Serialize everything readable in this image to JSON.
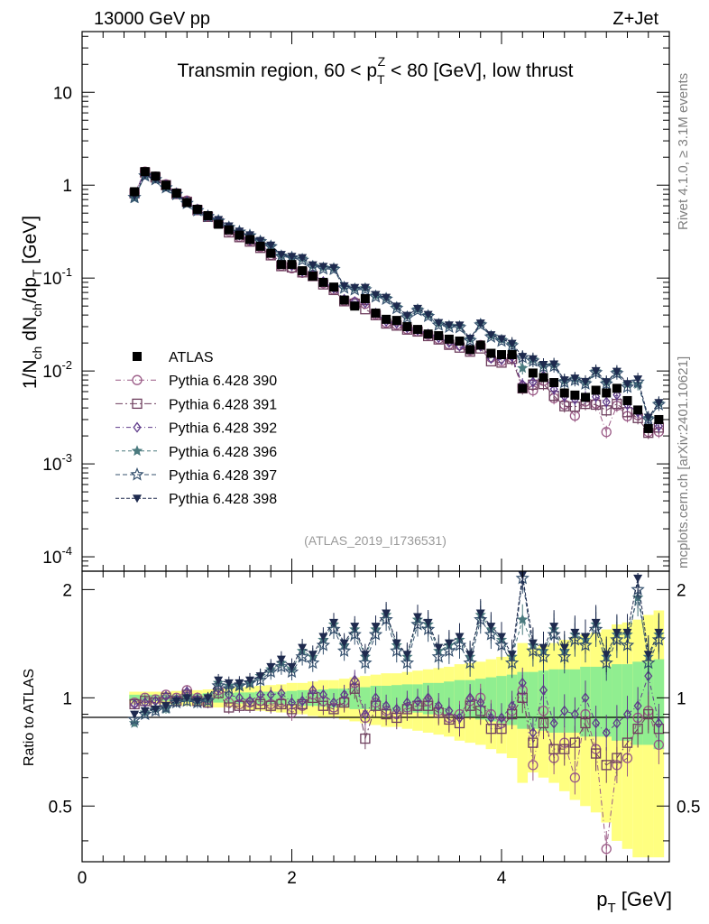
{
  "header": {
    "left": "13000 GeV pp",
    "right": "Z+Jet"
  },
  "side_text": {
    "top": "Rivet 4.1.0, ≥ 3.1M events",
    "bottom": "mcplots.cern.ch [arXiv:2401.10621]"
  },
  "colors": {
    "data": "#000000",
    "band_inner": "#90ee90",
    "band_outer": "#ffff80",
    "series": [
      "#9a5a86",
      "#6e3f5e",
      "#5e3a8a",
      "#4a7a7e",
      "#34506e",
      "#1e2a4e"
    ]
  },
  "chart_data": [
    {
      "type": "scatter",
      "panel": "main",
      "title": "Transmin region, 60 < p_T^Z < 80 [GeV], low thrust",
      "title_parts": {
        "pre": "Transmin region, 60 < p",
        "sub": "T",
        "sup": "Z",
        "post": " < 80 [GeV], low thrust"
      },
      "ylabel": "1/N_ch dN_ch/dp_T [GeV]",
      "ylabel_parts": {
        "a": "1/N",
        "a_sub": "ch",
        "b": " dN",
        "b_sub": "ch",
        "c": "/dp",
        "c_sub": "T",
        "d": " [GeV]"
      },
      "xlabel": "p_T [GeV]",
      "xlabel_parts": {
        "a": "p",
        "a_sub": "T",
        "b": " [GeV]"
      },
      "yscale": "log",
      "ylim": [
        7e-05,
        45
      ],
      "xlim": [
        0,
        5.6
      ],
      "yticks": [
        {
          "label": "10",
          "sup": "-4",
          "value": 0.0001
        },
        {
          "label": "10",
          "sup": "-3",
          "value": 0.001
        },
        {
          "label": "10",
          "sup": "-2",
          "value": 0.01
        },
        {
          "label": "10",
          "sup": "-1",
          "value": 0.1
        },
        {
          "label": "1",
          "sup": "",
          "value": 1
        },
        {
          "label": "10",
          "sup": "",
          "value": 10
        }
      ],
      "xticks": [
        {
          "label": "0",
          "value": 0
        },
        {
          "label": "2",
          "value": 2
        },
        {
          "label": "4",
          "value": 4
        }
      ],
      "watermark": "(ATLAS_2019_I1736531)",
      "legend_position": "middle-left",
      "legend": [
        {
          "label": "ATLAS",
          "marker": "square-filled"
        },
        {
          "label": "Pythia 6.428 390",
          "marker": "circle-open"
        },
        {
          "label": "Pythia 6.428 391",
          "marker": "square-open"
        },
        {
          "label": "Pythia 6.428 392",
          "marker": "diamond-open"
        },
        {
          "label": "Pythia 6.428 396",
          "marker": "star-filled"
        },
        {
          "label": "Pythia 6.428 397",
          "marker": "star-open"
        },
        {
          "label": "Pythia 6.428 398",
          "marker": "triangle-down-filled"
        }
      ],
      "x": [
        0.5,
        0.6,
        0.7,
        0.8,
        0.9,
        1.0,
        1.1,
        1.2,
        1.3,
        1.4,
        1.5,
        1.6,
        1.7,
        1.8,
        1.9,
        2.0,
        2.1,
        2.2,
        2.3,
        2.4,
        2.5,
        2.6,
        2.7,
        2.8,
        2.9,
        3.0,
        3.1,
        3.2,
        3.3,
        3.4,
        3.5,
        3.6,
        3.7,
        3.8,
        3.9,
        4.0,
        4.1,
        4.2,
        4.3,
        4.4,
        4.5,
        4.6,
        4.7,
        4.8,
        4.9,
        5.0,
        5.1,
        5.2,
        5.3,
        5.4,
        5.5
      ],
      "data_values": [
        0.85,
        1.4,
        1.25,
        1.0,
        0.82,
        0.65,
        0.55,
        0.47,
        0.38,
        0.33,
        0.29,
        0.26,
        0.22,
        0.185,
        0.14,
        0.14,
        0.12,
        0.105,
        0.09,
        0.08,
        0.058,
        0.05,
        0.06,
        0.042,
        0.036,
        0.035,
        0.03,
        0.028,
        0.025,
        0.024,
        0.022,
        0.021,
        0.017,
        0.019,
        0.0155,
        0.015,
        0.015,
        0.0065,
        0.0095,
        0.0085,
        0.0075,
        0.0058,
        0.0055,
        0.0052,
        0.0062,
        0.0058,
        0.0065,
        0.0048,
        0.0038,
        0.0024,
        0.003
      ],
      "series": [
        {
          "name": "Pythia 6.428 390",
          "marker": "circle-open"
        },
        {
          "name": "Pythia 6.428 391",
          "marker": "square-open"
        },
        {
          "name": "Pythia 6.428 392",
          "marker": "diamond-open"
        },
        {
          "name": "Pythia 6.428 396",
          "marker": "star-filled"
        },
        {
          "name": "Pythia 6.428 397",
          "marker": "star-open"
        },
        {
          "name": "Pythia 6.428 398",
          "marker": "triangle-down-filled"
        }
      ]
    },
    {
      "type": "scatter",
      "panel": "ratio",
      "ylabel": "Ratio to ATLAS",
      "ylim": [
        0.35,
        2.25
      ],
      "xlim": [
        0,
        5.6
      ],
      "yticks": [
        {
          "label": "0.5",
          "value": 0.5
        },
        {
          "label": "1",
          "value": 1
        },
        {
          "label": "2",
          "value": 2
        }
      ],
      "x": [
        0.5,
        0.6,
        0.7,
        0.8,
        0.9,
        1.0,
        1.1,
        1.2,
        1.3,
        1.4,
        1.5,
        1.6,
        1.7,
        1.8,
        1.9,
        2.0,
        2.1,
        2.2,
        2.3,
        2.4,
        2.5,
        2.6,
        2.7,
        2.8,
        2.9,
        3.0,
        3.1,
        3.2,
        3.3,
        3.4,
        3.5,
        3.6,
        3.7,
        3.8,
        3.9,
        4.0,
        4.1,
        4.2,
        4.3,
        4.4,
        4.5,
        4.6,
        4.7,
        4.8,
        4.9,
        5.0,
        5.1,
        5.2,
        5.3,
        5.4,
        5.5
      ],
      "band_inner": [
        0.02,
        0.02,
        0.02,
        0.02,
        0.02,
        0.025,
        0.025,
        0.03,
        0.03,
        0.03,
        0.035,
        0.035,
        0.04,
        0.04,
        0.04,
        0.045,
        0.05,
        0.05,
        0.055,
        0.06,
        0.06,
        0.07,
        0.07,
        0.08,
        0.08,
        0.085,
        0.09,
        0.09,
        0.1,
        0.1,
        0.11,
        0.12,
        0.12,
        0.13,
        0.14,
        0.15,
        0.16,
        0.18,
        0.18,
        0.19,
        0.2,
        0.2,
        0.2,
        0.22,
        0.22,
        0.22,
        0.24,
        0.24,
        0.26,
        0.26,
        0.28
      ],
      "band_outer": [
        0.04,
        0.04,
        0.04,
        0.04,
        0.045,
        0.05,
        0.05,
        0.055,
        0.06,
        0.06,
        0.07,
        0.075,
        0.08,
        0.085,
        0.09,
        0.1,
        0.1,
        0.11,
        0.12,
        0.12,
        0.13,
        0.14,
        0.15,
        0.16,
        0.17,
        0.17,
        0.18,
        0.19,
        0.2,
        0.21,
        0.22,
        0.24,
        0.25,
        0.26,
        0.28,
        0.3,
        0.32,
        0.42,
        0.38,
        0.4,
        0.42,
        0.45,
        0.48,
        0.5,
        0.52,
        0.55,
        0.6,
        0.62,
        0.65,
        0.7,
        0.75
      ],
      "series": [
        {
          "name": "Pythia 6.428 390",
          "values": [
            0.97,
            1.0,
            0.99,
            1.02,
            1.0,
            1.05,
            1.0,
            0.99,
            1.05,
            0.97,
            0.96,
            0.97,
            0.98,
            0.96,
            0.97,
            0.91,
            0.95,
            1.02,
            0.98,
            0.94,
            0.98,
            1.1,
            0.88,
            0.97,
            0.92,
            0.9,
            0.94,
            0.95,
            0.98,
            0.92,
            0.88,
            0.9,
            0.98,
            1.0,
            0.9,
            0.85,
            0.92,
            1.05,
            0.65,
            0.92,
            0.68,
            0.75,
            0.6,
            0.9,
            0.72,
            0.38,
            0.65,
            0.68,
            0.88,
            0.92,
            0.74
          ]
        },
        {
          "name": "Pythia 6.428 391",
          "values": [
            0.96,
            0.98,
            0.97,
            1.0,
            0.98,
            1.02,
            0.98,
            0.97,
            1.03,
            0.94,
            0.95,
            0.95,
            0.96,
            0.95,
            0.96,
            0.93,
            0.96,
            1.0,
            0.95,
            0.93,
            0.97,
            1.06,
            0.77,
            0.95,
            0.9,
            0.88,
            0.93,
            0.95,
            0.95,
            0.91,
            0.87,
            0.85,
            0.95,
            0.92,
            0.82,
            0.82,
            0.9,
            1.0,
            0.75,
            0.85,
            0.72,
            0.72,
            0.75,
            0.85,
            0.7,
            0.65,
            0.68,
            0.75,
            0.82,
            0.9,
            0.82
          ]
        },
        {
          "name": "Pythia 6.428 392",
          "values": [
            0.96,
            0.97,
            0.98,
            1.01,
            0.99,
            1.04,
            0.99,
            1.0,
            1.06,
            1.02,
            1.0,
            0.98,
            1.02,
            1.02,
            1.03,
            0.97,
            0.98,
            1.05,
            1.02,
            0.97,
            1.02,
            1.12,
            0.9,
            1.0,
            0.95,
            0.93,
            0.97,
            0.98,
            1.0,
            0.95,
            0.92,
            0.88,
            1.0,
            0.97,
            0.88,
            0.88,
            0.95,
            1.1,
            0.8,
            1.05,
            0.85,
            0.92,
            0.9,
            1.0,
            0.85,
            0.8,
            0.85,
            0.9,
            0.95,
            1.15,
            0.85
          ]
        },
        {
          "name": "Pythia 6.428 396",
          "values": [
            0.85,
            0.91,
            0.93,
            0.93,
            0.98,
            1.0,
            0.98,
            0.99,
            1.1,
            1.08,
            1.08,
            1.1,
            1.15,
            1.2,
            1.25,
            1.2,
            1.35,
            1.3,
            1.45,
            1.6,
            1.4,
            1.55,
            1.3,
            1.55,
            1.7,
            1.4,
            1.3,
            1.65,
            1.6,
            1.35,
            1.4,
            1.45,
            1.3,
            1.7,
            1.55,
            1.45,
            1.3,
            1.65,
            1.4,
            1.35,
            1.55,
            1.35,
            1.5,
            1.45,
            1.6,
            1.3,
            1.5,
            1.5,
            1.9,
            1.3,
            1.5
          ]
        },
        {
          "name": "Pythia 6.428 397",
          "values": [
            0.87,
            0.9,
            0.92,
            0.94,
            0.97,
            0.98,
            0.97,
            0.98,
            1.08,
            1.06,
            1.08,
            1.1,
            1.12,
            1.18,
            1.22,
            1.18,
            1.3,
            1.25,
            1.4,
            1.55,
            1.35,
            1.5,
            1.25,
            1.5,
            1.65,
            1.35,
            1.25,
            1.6,
            1.55,
            1.3,
            1.35,
            1.4,
            1.25,
            1.65,
            1.5,
            1.4,
            1.25,
            2.15,
            1.35,
            1.3,
            1.5,
            1.3,
            1.45,
            1.4,
            1.55,
            1.25,
            1.45,
            1.4,
            2.0,
            1.25,
            1.45
          ]
        },
        {
          "name": "Pythia 6.428 398",
          "values": [
            0.9,
            0.92,
            0.93,
            0.95,
            0.98,
            1.0,
            0.98,
            1.0,
            1.12,
            1.1,
            1.1,
            1.12,
            1.15,
            1.22,
            1.28,
            1.22,
            1.38,
            1.32,
            1.48,
            1.62,
            1.42,
            1.58,
            1.32,
            1.58,
            1.72,
            1.42,
            1.32,
            1.68,
            1.62,
            1.38,
            1.42,
            1.48,
            1.32,
            1.72,
            1.58,
            1.48,
            1.32,
            2.2,
            1.42,
            1.38,
            1.58,
            1.38,
            1.52,
            1.48,
            1.62,
            1.32,
            1.52,
            1.52,
            2.15,
            1.32,
            1.52
          ]
        }
      ]
    }
  ]
}
